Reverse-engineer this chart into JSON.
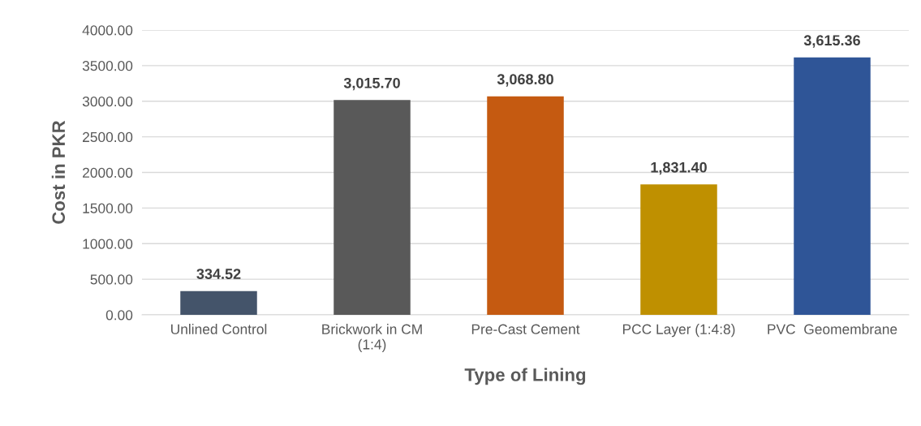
{
  "chart_data": {
    "type": "bar",
    "xlabel": "Type of Lining",
    "ylabel": "Cost in PKR",
    "categories": [
      "Unlined Control",
      "Brickwork in CM\n(1:4)",
      "Pre-Cast Cement",
      "PCC Layer (1:4:8)",
      "PVC  Geomembrane"
    ],
    "values": [
      334.52,
      3015.7,
      3068.8,
      1831.4,
      3615.36
    ],
    "colors": [
      "#44546a",
      "#595959",
      "#c55a11",
      "#bf9000",
      "#2f5597"
    ],
    "value_labels": [
      "334.52",
      "3,015.70",
      "3,068.80",
      "1,831.40",
      "3,615.36"
    ],
    "ylim": [
      0,
      4000
    ],
    "yticks": [
      {
        "value": 0,
        "label": "0.00"
      },
      {
        "value": 500,
        "label": "500.00"
      },
      {
        "value": 1000,
        "label": "1000.00"
      },
      {
        "value": 1500,
        "label": "1500.00"
      },
      {
        "value": 2000,
        "label": "2000.00"
      },
      {
        "value": 2500,
        "label": "2500.00"
      },
      {
        "value": 3000,
        "label": "3000.00"
      },
      {
        "value": 3500,
        "label": "3500.00"
      },
      {
        "value": 4000,
        "label": "4000.00"
      }
    ],
    "grid": "y",
    "legend": false
  }
}
